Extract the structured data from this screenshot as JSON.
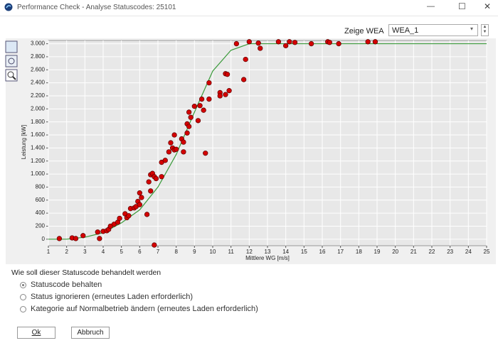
{
  "window": {
    "title": "Performance Check - Analyse Statuscodes: 25101"
  },
  "selector": {
    "label": "Zeige WEA",
    "value": "WEA_1"
  },
  "chart_data": {
    "type": "scatter",
    "xlabel": "Mittlere WG [m/s]",
    "ylabel": "Leistung [kW]",
    "xlim": [
      1,
      25
    ],
    "ylim": [
      -100,
      3050
    ],
    "xticks": [
      1,
      2,
      3,
      4,
      5,
      6,
      7,
      8,
      9,
      10,
      11,
      12,
      13,
      14,
      15,
      16,
      17,
      18,
      19,
      20,
      21,
      22,
      23,
      24,
      25
    ],
    "yticks": [
      {
        "value": 0,
        "label": "0"
      },
      {
        "value": 200,
        "label": "200"
      },
      {
        "value": 400,
        "label": "400"
      },
      {
        "value": 600,
        "label": "600"
      },
      {
        "value": 800,
        "label": "800"
      },
      {
        "value": 1000,
        "label": "1.000"
      },
      {
        "value": 1200,
        "label": "1.200"
      },
      {
        "value": 1400,
        "label": "1.400"
      },
      {
        "value": 1600,
        "label": "1.600"
      },
      {
        "value": 1800,
        "label": "1.800"
      },
      {
        "value": 2000,
        "label": "2.000"
      },
      {
        "value": 2200,
        "label": "2.200"
      },
      {
        "value": 2400,
        "label": "2.400"
      },
      {
        "value": 2600,
        "label": "2.600"
      },
      {
        "value": 2800,
        "label": "2.800"
      },
      {
        "value": 3000,
        "label": "3.000"
      }
    ],
    "grid": true,
    "series": [
      {
        "mode": "line",
        "color": "#3a9a3a",
        "x": [
          1,
          2,
          3,
          4,
          5,
          6,
          7,
          8,
          9,
          10,
          11,
          12,
          25
        ],
        "values": [
          0,
          0,
          30,
          100,
          250,
          450,
          800,
          1300,
          1950,
          2580,
          2900,
          3000,
          3000
        ]
      },
      {
        "mode": "markers",
        "color": "#d40000",
        "x": [
          1.6,
          2.3,
          2.5,
          2.9,
          3.7,
          3.8,
          4.0,
          4.2,
          4.3,
          4.4,
          4.6,
          4.8,
          4.9,
          5.2,
          5.3,
          5.4,
          5.5,
          5.7,
          5.8,
          5.9,
          6.0,
          6.1,
          6.0,
          6.4,
          6.5,
          6.6,
          6.6,
          6.7,
          6.8,
          6.8,
          6.9,
          7.2,
          7.2,
          7.4,
          7.6,
          7.7,
          7.8,
          7.9,
          7.9,
          8.0,
          8.3,
          8.4,
          8.4,
          8.6,
          8.6,
          8.7,
          8.7,
          8.8,
          9.0,
          9.2,
          9.3,
          9.4,
          9.5,
          9.6,
          9.8,
          9.8,
          10.4,
          10.4,
          10.7,
          10.7,
          10.8,
          10.9,
          11.3,
          11.7,
          11.8,
          12.0,
          12.5,
          12.6,
          13.6,
          14.0,
          14.2,
          14.5,
          15.4,
          16.3,
          16.4,
          16.9,
          18.5,
          18.9
        ],
        "values": [
          10,
          20,
          10,
          55,
          110,
          10,
          120,
          130,
          150,
          200,
          230,
          260,
          320,
          390,
          330,
          360,
          470,
          480,
          500,
          580,
          710,
          640,
          530,
          380,
          880,
          740,
          990,
          1010,
          -90,
          960,
          930,
          960,
          1180,
          1210,
          1340,
          1480,
          1400,
          1600,
          1370,
          1380,
          1540,
          1490,
          1340,
          1630,
          1770,
          1730,
          1950,
          1870,
          2040,
          1820,
          2050,
          2150,
          1980,
          1320,
          2150,
          2400,
          2250,
          2200,
          2540,
          2220,
          2530,
          2280,
          3000,
          2450,
          2760,
          3030,
          3010,
          2930,
          3030,
          2970,
          3030,
          3020,
          3000,
          3030,
          3020,
          3000,
          3030,
          3030
        ]
      }
    ]
  },
  "options": {
    "question": "Wie soll dieser Statuscode behandelt werden",
    "selected": 0,
    "items": [
      "Statuscode behalten",
      "Status ignorieren (erneutes Laden erforderlich)",
      "Kategorie auf Normalbetrieb ändern (erneutes Laden erforderlich)"
    ]
  },
  "buttons": {
    "ok": "Ok",
    "cancel": "Abbruch"
  }
}
